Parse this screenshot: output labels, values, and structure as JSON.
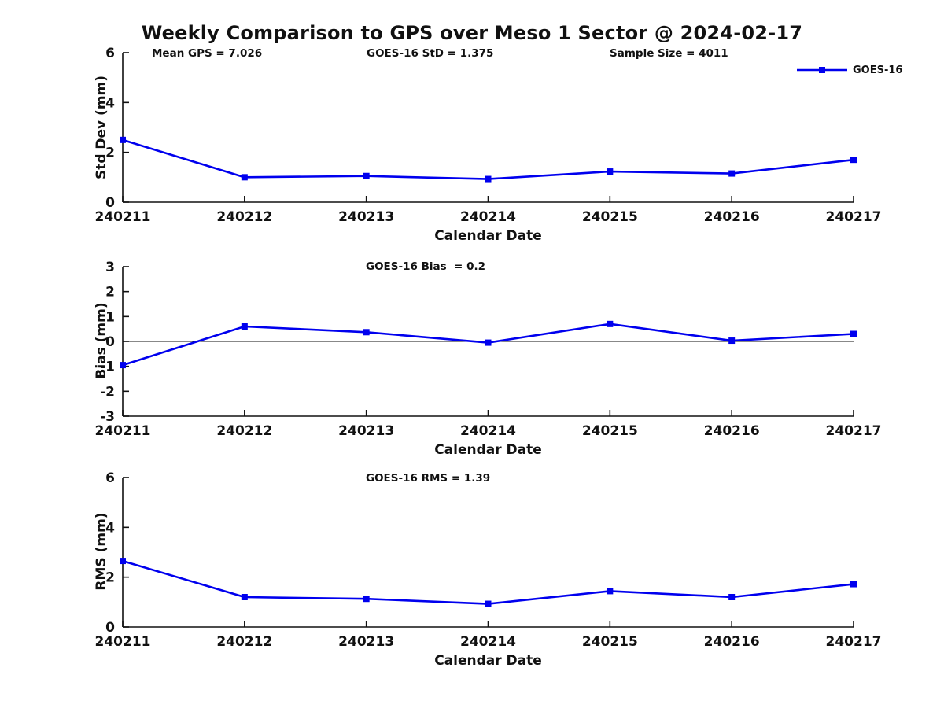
{
  "figure": {
    "title": "Weekly Comparison to GPS over Meso 1 Sector @ 2024-02-17",
    "background": "#ffffff",
    "text_color": "#111111"
  },
  "chart_data": {
    "type": "line",
    "title": "Weekly Comparison to GPS over Meso 1 Sector @ 2024-02-17",
    "categories": [
      "240211",
      "240212",
      "240213",
      "240214",
      "240215",
      "240216",
      "240217"
    ],
    "xlabel": "Calendar Date",
    "legend": {
      "label": "GOES-16",
      "position": "top-right"
    },
    "series_name": "GOES-16",
    "line_color": "#0000ee",
    "marker": "square",
    "grid": false,
    "subplots": [
      {
        "id": "std-dev",
        "ylabel": "Std Dev (mm)",
        "ylim": [
          0,
          6
        ],
        "yticks": [
          0,
          2,
          4,
          6
        ],
        "values": [
          2.5,
          1.0,
          1.05,
          0.93,
          1.23,
          1.15,
          1.7
        ],
        "zero_line": false,
        "annotations": [
          "Mean GPS = 7.026",
          "GOES-16 StD = 1.375",
          "Sample Size = 4011"
        ]
      },
      {
        "id": "bias",
        "ylabel": "Bias (mm)",
        "ylim": [
          -3,
          3
        ],
        "yticks": [
          -3,
          -2,
          -1,
          0,
          1,
          2,
          3
        ],
        "values": [
          -0.95,
          0.6,
          0.37,
          -0.05,
          0.7,
          0.03,
          0.3
        ],
        "zero_line": true,
        "annotations": [
          "GOES-16 Bias  = 0.2"
        ]
      },
      {
        "id": "rms",
        "ylabel": "RMS (mm)",
        "ylim": [
          0,
          6
        ],
        "yticks": [
          0,
          2,
          4,
          6
        ],
        "values": [
          2.65,
          1.2,
          1.13,
          0.93,
          1.44,
          1.2,
          1.72
        ],
        "zero_line": false,
        "annotations": [
          "GOES-16 RMS = 1.39"
        ]
      }
    ]
  }
}
